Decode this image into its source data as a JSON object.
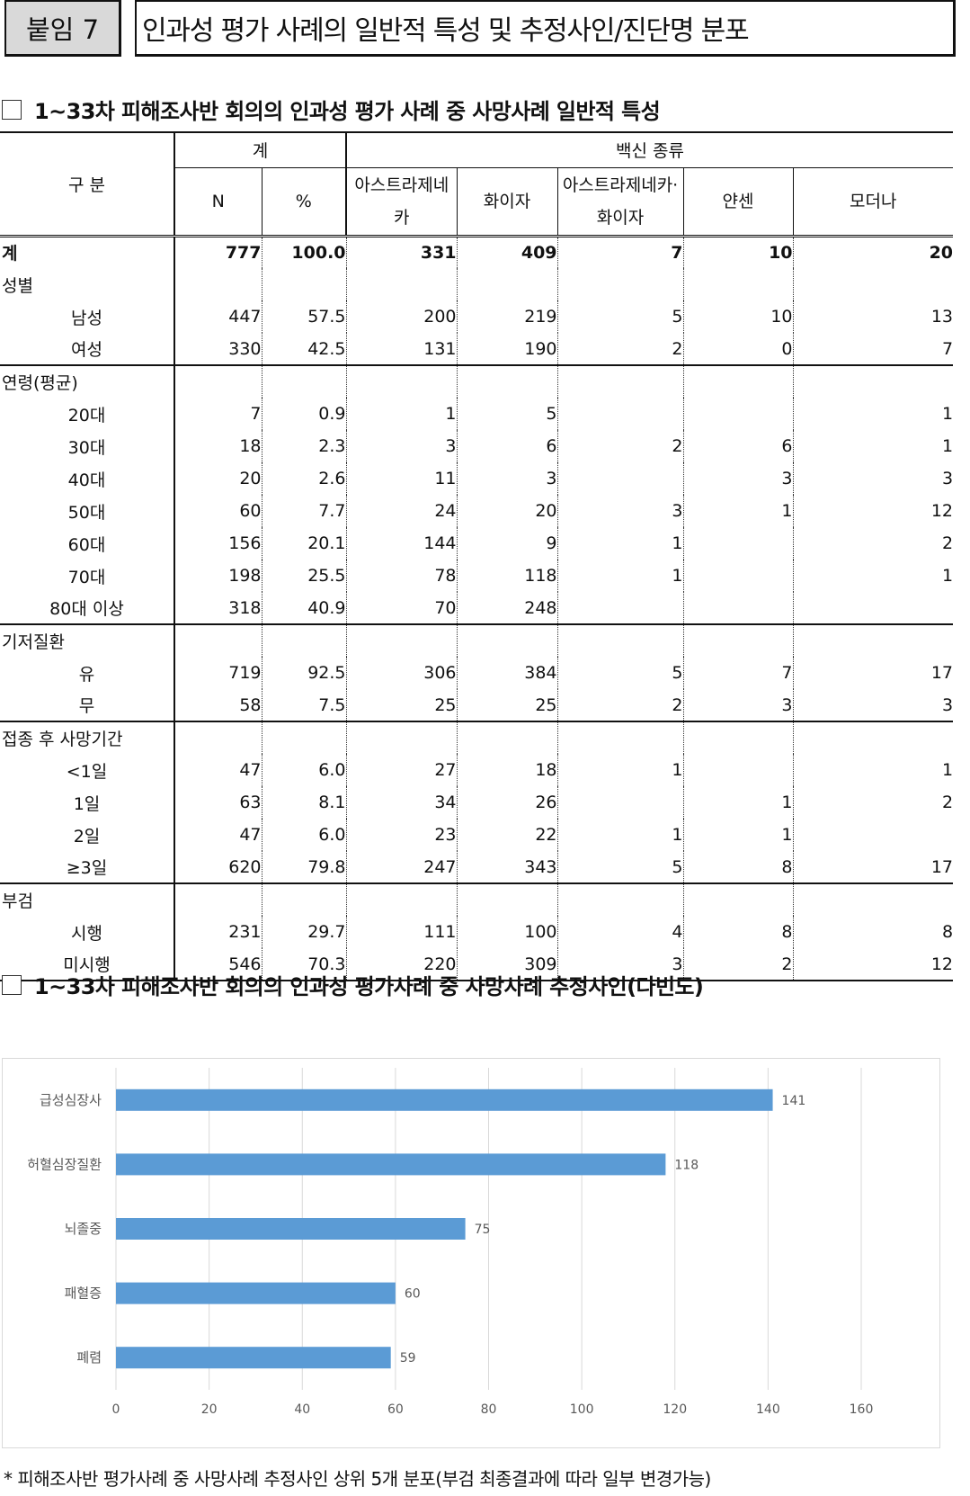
{
  "header": {
    "tag": "붙임 7",
    "title": "인과성 평가 사례의 일반적 특성 및 추정사인/진단명 분포"
  },
  "table_section": {
    "heading": "1~33차 피해조사반 회의의 인과성 평가 사례 중 사망사례 일반적 특성",
    "header": {
      "category": "구 분",
      "total_group": "계",
      "vaccine_group": "백신 종류",
      "n": "N",
      "pct": "%",
      "az": "아스트라제네카",
      "pfizer": "화이자",
      "az_pfizer": "아스트라제네카·화이자",
      "janssen": "얀센",
      "moderna": "모더나"
    },
    "rows": [
      {
        "label": "계",
        "type": "total",
        "n": "777",
        "pct": "100.0",
        "az": "331",
        "pfizer": "409",
        "azpf": "7",
        "janssen": "10",
        "moderna": "20"
      },
      {
        "label": "성별",
        "type": "group",
        "n": "",
        "pct": "",
        "az": "",
        "pfizer": "",
        "azpf": "",
        "janssen": "",
        "moderna": ""
      },
      {
        "label": "남성",
        "type": "sub",
        "n": "447",
        "pct": "57.5",
        "az": "200",
        "pfizer": "219",
        "azpf": "5",
        "janssen": "10",
        "moderna": "13"
      },
      {
        "label": "여성",
        "type": "sub",
        "end": true,
        "n": "330",
        "pct": "42.5",
        "az": "131",
        "pfizer": "190",
        "azpf": "2",
        "janssen": "0",
        "moderna": "7"
      },
      {
        "label": "연령(평균)",
        "type": "group",
        "n": "",
        "pct": "",
        "az": "",
        "pfizer": "",
        "azpf": "",
        "janssen": "",
        "moderna": ""
      },
      {
        "label": "20대",
        "type": "sub",
        "n": "7",
        "pct": "0.9",
        "az": "1",
        "pfizer": "5",
        "azpf": "",
        "janssen": "",
        "moderna": "1"
      },
      {
        "label": "30대",
        "type": "sub",
        "n": "18",
        "pct": "2.3",
        "az": "3",
        "pfizer": "6",
        "azpf": "2",
        "janssen": "6",
        "moderna": "1"
      },
      {
        "label": "40대",
        "type": "sub",
        "n": "20",
        "pct": "2.6",
        "az": "11",
        "pfizer": "3",
        "azpf": "",
        "janssen": "3",
        "moderna": "3"
      },
      {
        "label": "50대",
        "type": "sub",
        "n": "60",
        "pct": "7.7",
        "az": "24",
        "pfizer": "20",
        "azpf": "3",
        "janssen": "1",
        "moderna": "12"
      },
      {
        "label": "60대",
        "type": "sub",
        "n": "156",
        "pct": "20.1",
        "az": "144",
        "pfizer": "9",
        "azpf": "1",
        "janssen": "",
        "moderna": "2"
      },
      {
        "label": "70대",
        "type": "sub",
        "n": "198",
        "pct": "25.5",
        "az": "78",
        "pfizer": "118",
        "azpf": "1",
        "janssen": "",
        "moderna": "1"
      },
      {
        "label": "80대 이상",
        "type": "sub",
        "end": true,
        "n": "318",
        "pct": "40.9",
        "az": "70",
        "pfizer": "248",
        "azpf": "",
        "janssen": "",
        "moderna": ""
      },
      {
        "label": "기저질환",
        "type": "group",
        "n": "",
        "pct": "",
        "az": "",
        "pfizer": "",
        "azpf": "",
        "janssen": "",
        "moderna": ""
      },
      {
        "label": "유",
        "type": "sub",
        "n": "719",
        "pct": "92.5",
        "az": "306",
        "pfizer": "384",
        "azpf": "5",
        "janssen": "7",
        "moderna": "17"
      },
      {
        "label": "무",
        "type": "sub",
        "end": true,
        "n": "58",
        "pct": "7.5",
        "az": "25",
        "pfizer": "25",
        "azpf": "2",
        "janssen": "3",
        "moderna": "3"
      },
      {
        "label": "접종 후 사망기간",
        "type": "group",
        "n": "",
        "pct": "",
        "az": "",
        "pfizer": "",
        "azpf": "",
        "janssen": "",
        "moderna": ""
      },
      {
        "label": "<1일",
        "type": "sub",
        "n": "47",
        "pct": "6.0",
        "az": "27",
        "pfizer": "18",
        "azpf": "1",
        "janssen": "",
        "moderna": "1"
      },
      {
        "label": "1일",
        "type": "sub",
        "n": "63",
        "pct": "8.1",
        "az": "34",
        "pfizer": "26",
        "azpf": "",
        "janssen": "1",
        "moderna": "2"
      },
      {
        "label": "2일",
        "type": "sub",
        "n": "47",
        "pct": "6.0",
        "az": "23",
        "pfizer": "22",
        "azpf": "1",
        "janssen": "1",
        "moderna": ""
      },
      {
        "label": "≥3일",
        "type": "sub",
        "end": true,
        "n": "620",
        "pct": "79.8",
        "az": "247",
        "pfizer": "343",
        "azpf": "5",
        "janssen": "8",
        "moderna": "17"
      },
      {
        "label": "부검",
        "type": "group",
        "n": "",
        "pct": "",
        "az": "",
        "pfizer": "",
        "azpf": "",
        "janssen": "",
        "moderna": ""
      },
      {
        "label": "시행",
        "type": "sub",
        "n": "231",
        "pct": "29.7",
        "az": "111",
        "pfizer": "100",
        "azpf": "4",
        "janssen": "8",
        "moderna": "8"
      },
      {
        "label": "미시행",
        "type": "sub",
        "end": true,
        "n": "546",
        "pct": "70.3",
        "az": "220",
        "pfizer": "309",
        "azpf": "3",
        "janssen": "2",
        "moderna": "12"
      }
    ]
  },
  "chart_section": {
    "heading": "1~33차 피해조사반 회의의 인과성 평가사례 중 사망사례 추정사인(다빈도)"
  },
  "chart_data": {
    "type": "bar",
    "orientation": "horizontal",
    "categories": [
      "급성심장사",
      "허혈심장질환",
      "뇌졸중",
      "패혈증",
      "폐렴"
    ],
    "values": [
      141,
      118,
      75,
      60,
      59
    ],
    "x_ticks": [
      0,
      20,
      40,
      60,
      80,
      100,
      120,
      140,
      160
    ],
    "xlim": [
      0,
      160
    ],
    "grid": true,
    "bar_color": "#5b9bd5",
    "title": "",
    "xlabel": "",
    "ylabel": ""
  },
  "footnote": "* 피해조사반 평가사례 중 사망사례 추정사인 상위 5개 분포(부검 최종결과에 따라 일부 변경가능)"
}
